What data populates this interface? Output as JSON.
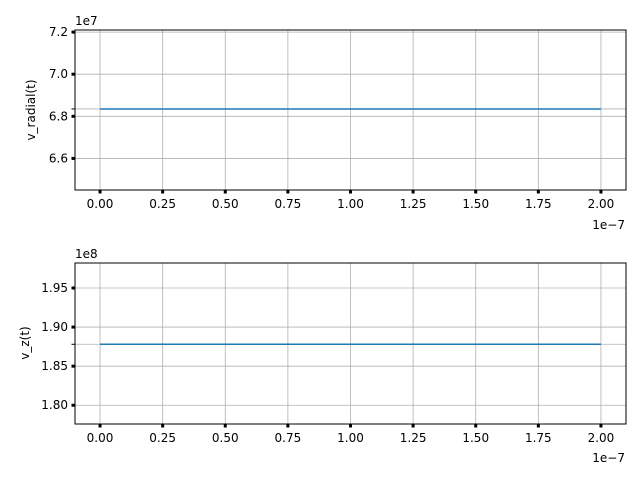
{
  "chart_data": [
    {
      "type": "line",
      "ylabel": "v_radial(t)",
      "x_offset_text": "1e−7",
      "y_offset_text": "1e7",
      "x_ticks": [
        "0.00",
        "0.25",
        "0.50",
        "0.75",
        "1.00",
        "1.25",
        "1.50",
        "1.75",
        "2.00"
      ],
      "y_ticks": [
        "6.6",
        "6.8",
        "7.0",
        "7.2"
      ],
      "xlim": [
        -0.1,
        2.1
      ],
      "ylim": [
        6.45,
        7.21
      ],
      "grid": true,
      "series": [
        {
          "x": [
            0.0,
            2.0
          ],
          "values": [
            6.835,
            6.835
          ],
          "color": "#1f77b4"
        }
      ]
    },
    {
      "type": "line",
      "ylabel": "v_z(t)",
      "x_offset_text": "1e−7",
      "y_offset_text": "1e8",
      "x_ticks": [
        "0.00",
        "0.25",
        "0.50",
        "0.75",
        "1.00",
        "1.25",
        "1.50",
        "1.75",
        "2.00"
      ],
      "y_ticks": [
        "1.80",
        "1.85",
        "1.90",
        "1.95"
      ],
      "xlim": [
        -0.1,
        2.1
      ],
      "ylim": [
        1.776,
        1.982
      ],
      "grid": true,
      "series": [
        {
          "x": [
            0.0,
            2.0
          ],
          "values": [
            1.878,
            1.878
          ],
          "color": "#1f77b4"
        }
      ]
    }
  ]
}
